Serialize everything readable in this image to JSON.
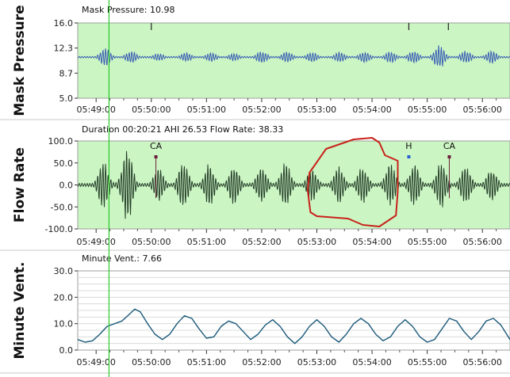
{
  "colors": {
    "plot_bg": "#ccf5c4",
    "plot_bg_plain": "#ffffff",
    "mask_line": "#3a5fb4",
    "flow_line": "#27402b",
    "minvent_line": "#1d5a7a",
    "cursor": "#2bc92b",
    "annotation": "#c8221a",
    "marker_ca": "#6b1f3a",
    "marker_h": "#2a5fd4",
    "grid": "#d8dcd8",
    "separator": "#c8c8c8"
  },
  "chart_data": [
    {
      "type": "line",
      "title": "Mask Pressure: 10.98",
      "ylabel": "Mask Pressure",
      "ylim": [
        5.0,
        16.0
      ],
      "yticks": [
        "16.0",
        "12.3",
        "8.7",
        "5.0"
      ],
      "x_time_range": [
        "05:48:40",
        "05:56:30"
      ],
      "xticks": [
        "05:49:00",
        "05:50:00",
        "05:51:00",
        "05:52:00",
        "05:53:00",
        "05:54:00",
        "05:55:00",
        "05:56:00"
      ],
      "series": [
        {
          "baseline": 11.0,
          "clusters": [
            {
              "t": "05:49:10",
              "amplitude": 1.4
            },
            {
              "t": "05:49:38",
              "amplitude": 1.0
            },
            {
              "t": "05:50:08",
              "amplitude": 0.6
            },
            {
              "t": "05:50:38",
              "amplitude": 0.7
            },
            {
              "t": "05:51:05",
              "amplitude": 0.7
            },
            {
              "t": "05:51:30",
              "amplitude": 0.6
            },
            {
              "t": "05:52:00",
              "amplitude": 1.0
            },
            {
              "t": "05:52:28",
              "amplitude": 0.9
            },
            {
              "t": "05:52:55",
              "amplitude": 0.8
            },
            {
              "t": "05:53:25",
              "amplitude": 0.8
            },
            {
              "t": "05:53:52",
              "amplitude": 0.9
            },
            {
              "t": "05:54:20",
              "amplitude": 0.9
            },
            {
              "t": "05:54:45",
              "amplitude": 1.0
            },
            {
              "t": "05:55:13",
              "amplitude": 1.8
            },
            {
              "t": "05:55:42",
              "amplitude": 1.0
            },
            {
              "t": "05:56:10",
              "amplitude": 1.0
            }
          ]
        }
      ],
      "event_ticks": [
        "05:50:00",
        "05:54:40",
        "05:55:23"
      ],
      "grid": false
    },
    {
      "type": "line",
      "title": "Duration 00:20:21 AHI 26.53 Flow Rate: 38.33",
      "ylabel": "Flow Rate",
      "ylim": [
        -100.0,
        100.0
      ],
      "yticks": [
        "100.0",
        "50.0",
        "0.0",
        "-50.0",
        "-100.0"
      ],
      "x_time_range": [
        "05:48:40",
        "05:56:30"
      ],
      "xticks": [
        "05:49:00",
        "05:50:00",
        "05:51:00",
        "05:52:00",
        "05:53:00",
        "05:54:00",
        "05:55:00",
        "05:56:00"
      ],
      "series": [
        {
          "clusters": [
            {
              "t": "05:49:08",
              "amplitude": 55
            },
            {
              "t": "05:49:34",
              "amplitude": 90
            },
            {
              "t": "05:50:08",
              "amplitude": 40
            },
            {
              "t": "05:50:35",
              "amplitude": 55
            },
            {
              "t": "05:51:03",
              "amplitude": 50
            },
            {
              "t": "05:51:30",
              "amplitude": 50
            },
            {
              "t": "05:52:00",
              "amplitude": 45
            },
            {
              "t": "05:52:26",
              "amplitude": 55
            },
            {
              "t": "05:52:55",
              "amplitude": 40
            },
            {
              "t": "05:53:24",
              "amplitude": 45
            },
            {
              "t": "05:53:50",
              "amplitude": 45
            },
            {
              "t": "05:54:20",
              "amplitude": 50
            },
            {
              "t": "05:54:46",
              "amplitude": 50
            },
            {
              "t": "05:55:15",
              "amplitude": 55
            },
            {
              "t": "05:55:42",
              "amplitude": 50
            },
            {
              "t": "05:56:10",
              "amplitude": 40
            }
          ]
        }
      ],
      "events": [
        {
          "label": "CA",
          "t": "05:50:05",
          "kind": "ca"
        },
        {
          "label": "H",
          "t": "05:54:40",
          "kind": "h"
        },
        {
          "label": "CA",
          "t": "05:55:24",
          "kind": "ca"
        }
      ],
      "grid": false
    },
    {
      "type": "line",
      "title": "Minute Vent.: 7.66",
      "ylabel": "Minute Vent.",
      "ylim": [
        0.0,
        30.0
      ],
      "yticks": [
        "30.0",
        "20.0",
        "10.0",
        "0.0"
      ],
      "x_time_range": [
        "05:48:40",
        "05:56:30"
      ],
      "xticks": [
        "05:49:00",
        "05:50:00",
        "05:51:00",
        "05:52:00",
        "05:53:00",
        "05:54:00",
        "05:55:00",
        "05:56:00"
      ],
      "series": [
        {
          "points": [
            [
              "05:48:40",
              4.0
            ],
            [
              "05:48:48",
              3.0
            ],
            [
              "05:48:56",
              3.5
            ],
            [
              "05:49:04",
              6.0
            ],
            [
              "05:49:12",
              9.0
            ],
            [
              "05:49:20",
              10.0
            ],
            [
              "05:49:28",
              11.0
            ],
            [
              "05:49:36",
              13.5
            ],
            [
              "05:49:42",
              15.5
            ],
            [
              "05:49:48",
              14.5
            ],
            [
              "05:49:56",
              10.0
            ],
            [
              "05:50:04",
              6.0
            ],
            [
              "05:50:12",
              4.0
            ],
            [
              "05:50:20",
              6.0
            ],
            [
              "05:50:28",
              10.0
            ],
            [
              "05:50:36",
              13.0
            ],
            [
              "05:50:44",
              12.0
            ],
            [
              "05:50:52",
              8.0
            ],
            [
              "05:51:00",
              4.5
            ],
            [
              "05:51:08",
              5.0
            ],
            [
              "05:51:16",
              9.0
            ],
            [
              "05:51:24",
              11.0
            ],
            [
              "05:51:32",
              10.0
            ],
            [
              "05:51:40",
              7.0
            ],
            [
              "05:51:48",
              4.0
            ],
            [
              "05:51:56",
              6.0
            ],
            [
              "05:52:04",
              9.5
            ],
            [
              "05:52:12",
              11.5
            ],
            [
              "05:52:20",
              9.0
            ],
            [
              "05:52:28",
              5.0
            ],
            [
              "05:52:36",
              2.5
            ],
            [
              "05:52:44",
              5.0
            ],
            [
              "05:52:52",
              9.0
            ],
            [
              "05:53:00",
              11.5
            ],
            [
              "05:53:08",
              9.0
            ],
            [
              "05:53:16",
              5.0
            ],
            [
              "05:53:24",
              3.0
            ],
            [
              "05:53:32",
              6.0
            ],
            [
              "05:53:40",
              10.0
            ],
            [
              "05:53:48",
              12.0
            ],
            [
              "05:53:56",
              10.0
            ],
            [
              "05:54:04",
              6.0
            ],
            [
              "05:54:12",
              3.5
            ],
            [
              "05:54:20",
              5.0
            ],
            [
              "05:54:28",
              9.0
            ],
            [
              "05:54:36",
              11.5
            ],
            [
              "05:54:44",
              9.0
            ],
            [
              "05:54:52",
              5.0
            ],
            [
              "05:55:00",
              3.0
            ],
            [
              "05:55:08",
              4.0
            ],
            [
              "05:55:16",
              8.0
            ],
            [
              "05:55:24",
              12.0
            ],
            [
              "05:55:32",
              11.0
            ],
            [
              "05:55:40",
              7.0
            ],
            [
              "05:55:48",
              4.0
            ],
            [
              "05:55:56",
              7.0
            ],
            [
              "05:56:04",
              11.0
            ],
            [
              "05:56:12",
              12.0
            ],
            [
              "05:56:20",
              9.5
            ],
            [
              "05:56:30",
              4.0
            ]
          ]
        }
      ],
      "grid": true
    }
  ],
  "cursor_time": "05:49:14",
  "annotation": "hand-drawn red loop around the 05:53:00–05:54:30 flow-rate segment"
}
